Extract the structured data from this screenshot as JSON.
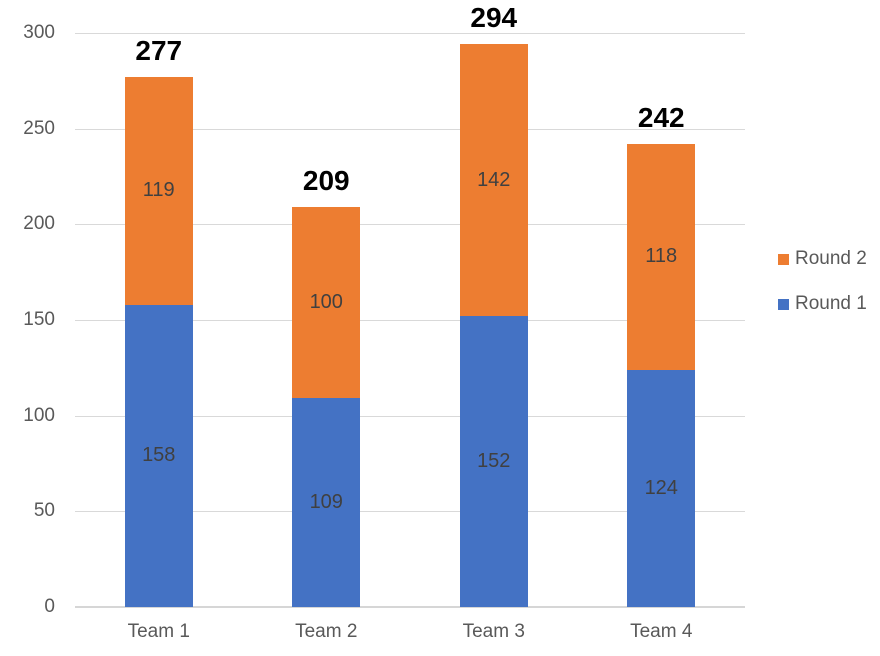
{
  "chart_data": {
    "type": "bar",
    "subtype": "stacked-column",
    "categories": [
      "Team 1",
      "Team 2",
      "Team 3",
      "Team 4"
    ],
    "series": [
      {
        "name": "Round 1",
        "color": "#4472C4",
        "values": [
          158,
          109,
          152,
          124
        ]
      },
      {
        "name": "Round 2",
        "color": "#ED7D31",
        "values": [
          119,
          100,
          142,
          118
        ]
      }
    ],
    "totals": [
      277,
      209,
      294,
      242
    ],
    "title": "",
    "xlabel": "",
    "ylabel": "",
    "y_ticks": [
      0,
      50,
      100,
      150,
      200,
      250,
      300
    ],
    "ylim": [
      0,
      300
    ],
    "grid": true,
    "legend_position": "right",
    "legend_order": [
      "Round 2",
      "Round 1"
    ],
    "colors": {
      "round1": "#4472C4",
      "round2": "#ED7D31",
      "gridline": "#D9D9D9",
      "axis_label": "#595959",
      "segment_label": "#404040",
      "total_label": "#000000",
      "background": "#FFFFFF"
    }
  }
}
